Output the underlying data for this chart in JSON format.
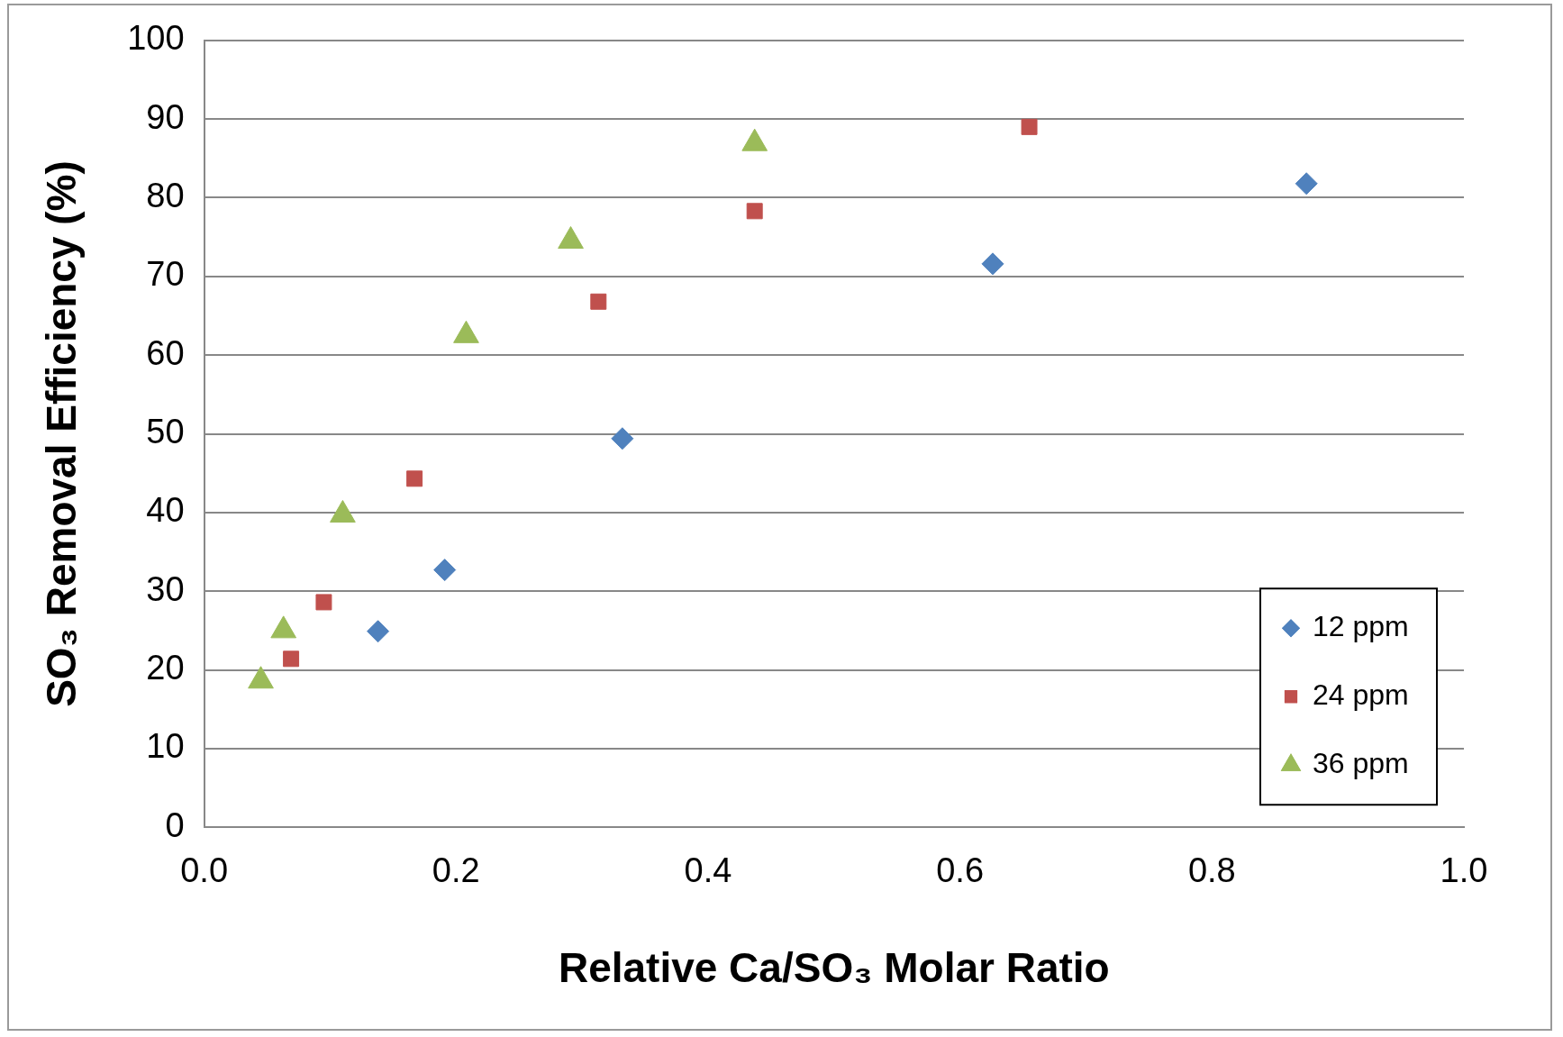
{
  "chart_data": {
    "type": "scatter",
    "xlabel": "Relative Ca/SO₃ Molar Ratio",
    "ylabel": "SO₃ Removal Efficiency (%)",
    "xlim": [
      0,
      1
    ],
    "xticks": [
      {
        "value": 0,
        "label": "0.0"
      },
      {
        "value": 0.2,
        "label": "0.2"
      },
      {
        "value": 0.4,
        "label": "0.4"
      },
      {
        "value": 0.6,
        "label": "0.6"
      },
      {
        "value": 0.8,
        "label": "0.8"
      },
      {
        "value": 1,
        "label": "1.0"
      }
    ],
    "ylim": [
      0,
      100
    ],
    "yticks": [
      0,
      10,
      20,
      30,
      40,
      50,
      60,
      70,
      80,
      90,
      100
    ],
    "grid": "y",
    "legend": "bottom right",
    "series": [
      {
        "name": "12 ppm",
        "color": "#4f81bd",
        "marker": "diamond",
        "x": [
          0.138,
          0.191,
          0.332,
          0.626,
          0.875
        ],
        "values": [
          24.9,
          32.7,
          49.4,
          71.6,
          81.8
        ]
      },
      {
        "name": "24 ppm",
        "color": "#c0504d",
        "marker": "square",
        "x": [
          0.069,
          0.095,
          0.167,
          0.313,
          0.437,
          0.655
        ],
        "values": [
          21.4,
          28.6,
          44.3,
          66.8,
          78.3,
          89.0
        ]
      },
      {
        "name": "36 ppm",
        "color": "#9bbb59",
        "marker": "triangle",
        "x": [
          0.045,
          0.063,
          0.11,
          0.208,
          0.291,
          0.437
        ],
        "values": [
          18.6,
          25.0,
          39.7,
          62.5,
          74.5,
          86.9
        ]
      }
    ]
  }
}
